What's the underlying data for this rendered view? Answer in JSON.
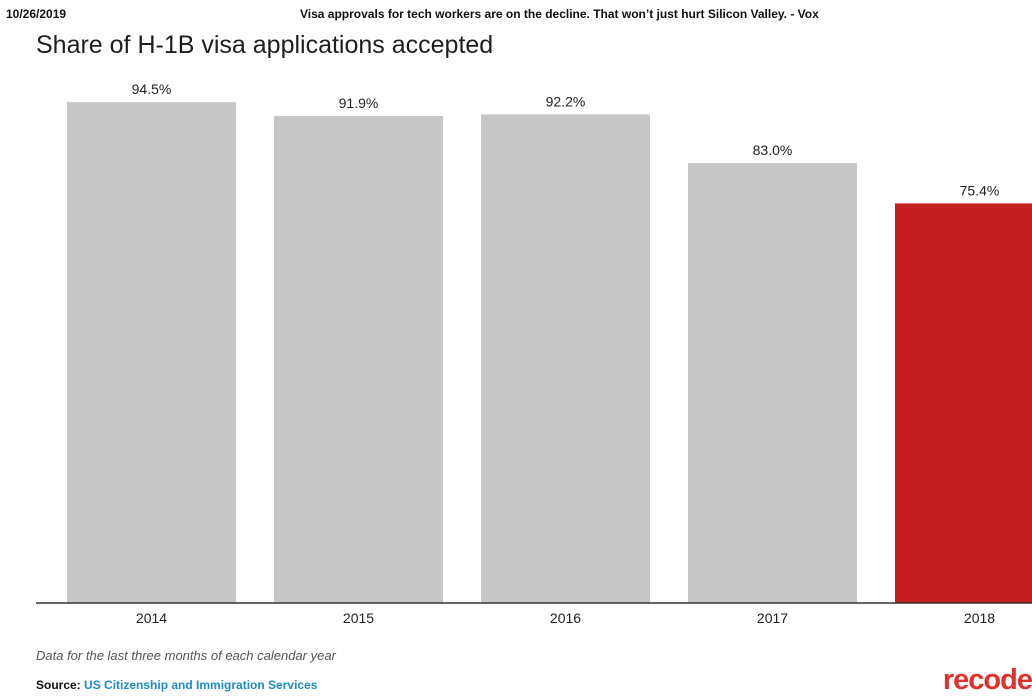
{
  "print_header": {
    "date": "10/26/2019",
    "page_title": "Visa approvals for tech workers are on the decline. That won’t just hurt Silicon Valley. - Vox"
  },
  "colors": {
    "bar_default": "#c7c7c7",
    "bar_highlight": "#c41e1e",
    "axis": "#333333"
  },
  "chart_data": {
    "type": "bar",
    "title": "Share of H-1B visa applications accepted",
    "categories": [
      "2014",
      "2015",
      "2016",
      "2017",
      "2018"
    ],
    "values": [
      94.5,
      91.9,
      92.2,
      83.0,
      75.4
    ],
    "data_labels": [
      "94.5%",
      "91.9%",
      "92.2%",
      "83.0%",
      "75.4%"
    ],
    "highlight_index": 4,
    "ylim": [
      0,
      100
    ],
    "xlabel": "",
    "ylabel": "",
    "grid": false
  },
  "footnote": "Data for the last three months of each calendar year",
  "source": {
    "label": "Source:",
    "link_text": "US Citizenship and Immigration Services"
  },
  "logo_text": "recode"
}
